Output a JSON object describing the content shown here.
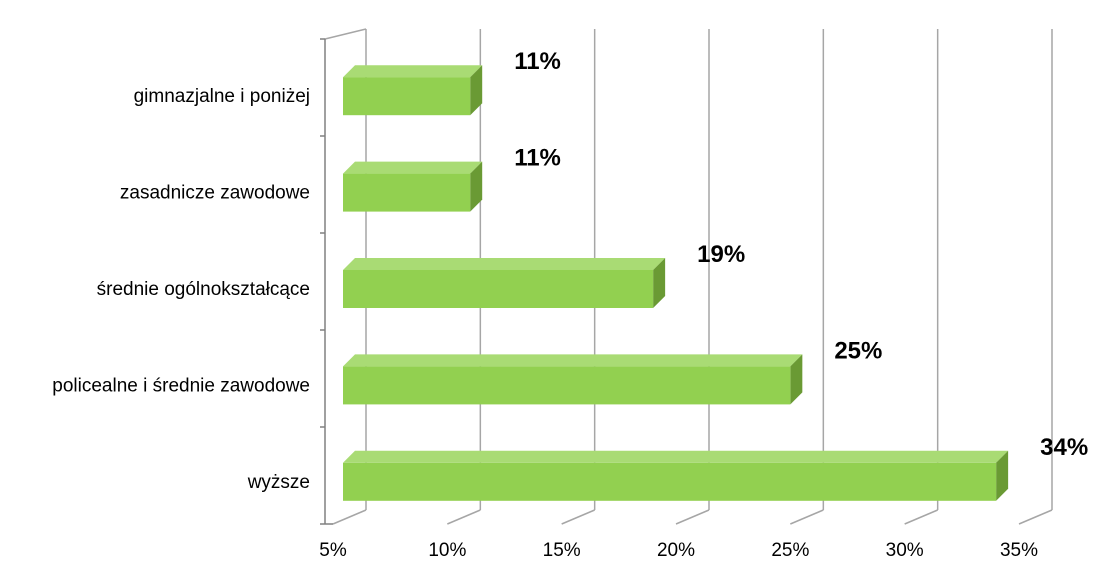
{
  "chart_data": {
    "type": "bar",
    "orientation": "horizontal",
    "three_d": true,
    "categories": [
      "gimnazjalne i poniżej",
      "zasadnicze zawodowe",
      "średnie ogólnokształcące",
      "policealne i średnie zawodowe",
      "wyższe"
    ],
    "values": [
      11,
      11,
      19,
      25,
      34
    ],
    "data_labels": [
      "11%",
      "11%",
      "19%",
      "25%",
      "34%"
    ],
    "x_ticks": [
      "5%",
      "10%",
      "15%",
      "20%",
      "25%",
      "30%",
      "35%"
    ],
    "xlim": [
      5,
      35
    ],
    "title": "",
    "xlabel": "",
    "ylabel": "",
    "grid": "vertical",
    "legend": "none",
    "colors": {
      "bar_front": "#92d050",
      "bar_top": "#a9db74",
      "bar_side": "#6a9a34",
      "grid": "#a6a6a6",
      "axis": "#808080"
    }
  }
}
